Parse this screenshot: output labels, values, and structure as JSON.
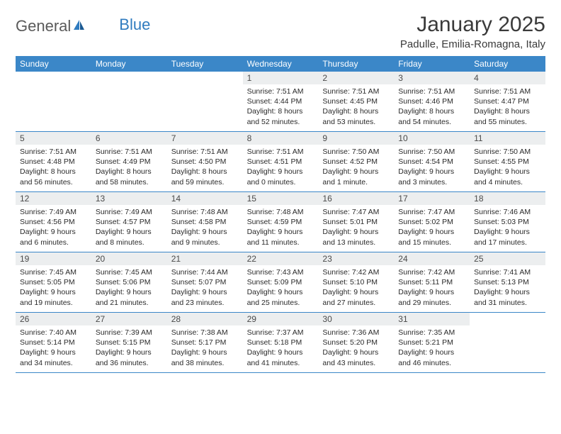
{
  "brand": {
    "name_part1": "General",
    "name_part2": "Blue",
    "text_color": "#5a5a5a",
    "accent_color": "#2f7bbf"
  },
  "title": "January 2025",
  "location": "Padulle, Emilia-Romagna, Italy",
  "colors": {
    "header_bg": "#3b87c8",
    "header_text": "#ffffff",
    "daynum_bg": "#eceeef",
    "daynum_text": "#4a4a4a",
    "body_text": "#2a2a2a",
    "divider": "#3b87c8",
    "page_bg": "#ffffff"
  },
  "typography": {
    "title_fontsize": 30,
    "location_fontsize": 15,
    "weekday_fontsize": 12,
    "daynum_fontsize": 12,
    "body_fontsize": 10.5
  },
  "weekdays": [
    "Sunday",
    "Monday",
    "Tuesday",
    "Wednesday",
    "Thursday",
    "Friday",
    "Saturday"
  ],
  "weeks": [
    [
      null,
      null,
      null,
      {
        "num": "1",
        "sunrise": "Sunrise: 7:51 AM",
        "sunset": "Sunset: 4:44 PM",
        "daylight1": "Daylight: 8 hours",
        "daylight2": "and 52 minutes."
      },
      {
        "num": "2",
        "sunrise": "Sunrise: 7:51 AM",
        "sunset": "Sunset: 4:45 PM",
        "daylight1": "Daylight: 8 hours",
        "daylight2": "and 53 minutes."
      },
      {
        "num": "3",
        "sunrise": "Sunrise: 7:51 AM",
        "sunset": "Sunset: 4:46 PM",
        "daylight1": "Daylight: 8 hours",
        "daylight2": "and 54 minutes."
      },
      {
        "num": "4",
        "sunrise": "Sunrise: 7:51 AM",
        "sunset": "Sunset: 4:47 PM",
        "daylight1": "Daylight: 8 hours",
        "daylight2": "and 55 minutes."
      }
    ],
    [
      {
        "num": "5",
        "sunrise": "Sunrise: 7:51 AM",
        "sunset": "Sunset: 4:48 PM",
        "daylight1": "Daylight: 8 hours",
        "daylight2": "and 56 minutes."
      },
      {
        "num": "6",
        "sunrise": "Sunrise: 7:51 AM",
        "sunset": "Sunset: 4:49 PM",
        "daylight1": "Daylight: 8 hours",
        "daylight2": "and 58 minutes."
      },
      {
        "num": "7",
        "sunrise": "Sunrise: 7:51 AM",
        "sunset": "Sunset: 4:50 PM",
        "daylight1": "Daylight: 8 hours",
        "daylight2": "and 59 minutes."
      },
      {
        "num": "8",
        "sunrise": "Sunrise: 7:51 AM",
        "sunset": "Sunset: 4:51 PM",
        "daylight1": "Daylight: 9 hours",
        "daylight2": "and 0 minutes."
      },
      {
        "num": "9",
        "sunrise": "Sunrise: 7:50 AM",
        "sunset": "Sunset: 4:52 PM",
        "daylight1": "Daylight: 9 hours",
        "daylight2": "and 1 minute."
      },
      {
        "num": "10",
        "sunrise": "Sunrise: 7:50 AM",
        "sunset": "Sunset: 4:54 PM",
        "daylight1": "Daylight: 9 hours",
        "daylight2": "and 3 minutes."
      },
      {
        "num": "11",
        "sunrise": "Sunrise: 7:50 AM",
        "sunset": "Sunset: 4:55 PM",
        "daylight1": "Daylight: 9 hours",
        "daylight2": "and 4 minutes."
      }
    ],
    [
      {
        "num": "12",
        "sunrise": "Sunrise: 7:49 AM",
        "sunset": "Sunset: 4:56 PM",
        "daylight1": "Daylight: 9 hours",
        "daylight2": "and 6 minutes."
      },
      {
        "num": "13",
        "sunrise": "Sunrise: 7:49 AM",
        "sunset": "Sunset: 4:57 PM",
        "daylight1": "Daylight: 9 hours",
        "daylight2": "and 8 minutes."
      },
      {
        "num": "14",
        "sunrise": "Sunrise: 7:48 AM",
        "sunset": "Sunset: 4:58 PM",
        "daylight1": "Daylight: 9 hours",
        "daylight2": "and 9 minutes."
      },
      {
        "num": "15",
        "sunrise": "Sunrise: 7:48 AM",
        "sunset": "Sunset: 4:59 PM",
        "daylight1": "Daylight: 9 hours",
        "daylight2": "and 11 minutes."
      },
      {
        "num": "16",
        "sunrise": "Sunrise: 7:47 AM",
        "sunset": "Sunset: 5:01 PM",
        "daylight1": "Daylight: 9 hours",
        "daylight2": "and 13 minutes."
      },
      {
        "num": "17",
        "sunrise": "Sunrise: 7:47 AM",
        "sunset": "Sunset: 5:02 PM",
        "daylight1": "Daylight: 9 hours",
        "daylight2": "and 15 minutes."
      },
      {
        "num": "18",
        "sunrise": "Sunrise: 7:46 AM",
        "sunset": "Sunset: 5:03 PM",
        "daylight1": "Daylight: 9 hours",
        "daylight2": "and 17 minutes."
      }
    ],
    [
      {
        "num": "19",
        "sunrise": "Sunrise: 7:45 AM",
        "sunset": "Sunset: 5:05 PM",
        "daylight1": "Daylight: 9 hours",
        "daylight2": "and 19 minutes."
      },
      {
        "num": "20",
        "sunrise": "Sunrise: 7:45 AM",
        "sunset": "Sunset: 5:06 PM",
        "daylight1": "Daylight: 9 hours",
        "daylight2": "and 21 minutes."
      },
      {
        "num": "21",
        "sunrise": "Sunrise: 7:44 AM",
        "sunset": "Sunset: 5:07 PM",
        "daylight1": "Daylight: 9 hours",
        "daylight2": "and 23 minutes."
      },
      {
        "num": "22",
        "sunrise": "Sunrise: 7:43 AM",
        "sunset": "Sunset: 5:09 PM",
        "daylight1": "Daylight: 9 hours",
        "daylight2": "and 25 minutes."
      },
      {
        "num": "23",
        "sunrise": "Sunrise: 7:42 AM",
        "sunset": "Sunset: 5:10 PM",
        "daylight1": "Daylight: 9 hours",
        "daylight2": "and 27 minutes."
      },
      {
        "num": "24",
        "sunrise": "Sunrise: 7:42 AM",
        "sunset": "Sunset: 5:11 PM",
        "daylight1": "Daylight: 9 hours",
        "daylight2": "and 29 minutes."
      },
      {
        "num": "25",
        "sunrise": "Sunrise: 7:41 AM",
        "sunset": "Sunset: 5:13 PM",
        "daylight1": "Daylight: 9 hours",
        "daylight2": "and 31 minutes."
      }
    ],
    [
      {
        "num": "26",
        "sunrise": "Sunrise: 7:40 AM",
        "sunset": "Sunset: 5:14 PM",
        "daylight1": "Daylight: 9 hours",
        "daylight2": "and 34 minutes."
      },
      {
        "num": "27",
        "sunrise": "Sunrise: 7:39 AM",
        "sunset": "Sunset: 5:15 PM",
        "daylight1": "Daylight: 9 hours",
        "daylight2": "and 36 minutes."
      },
      {
        "num": "28",
        "sunrise": "Sunrise: 7:38 AM",
        "sunset": "Sunset: 5:17 PM",
        "daylight1": "Daylight: 9 hours",
        "daylight2": "and 38 minutes."
      },
      {
        "num": "29",
        "sunrise": "Sunrise: 7:37 AM",
        "sunset": "Sunset: 5:18 PM",
        "daylight1": "Daylight: 9 hours",
        "daylight2": "and 41 minutes."
      },
      {
        "num": "30",
        "sunrise": "Sunrise: 7:36 AM",
        "sunset": "Sunset: 5:20 PM",
        "daylight1": "Daylight: 9 hours",
        "daylight2": "and 43 minutes."
      },
      {
        "num": "31",
        "sunrise": "Sunrise: 7:35 AM",
        "sunset": "Sunset: 5:21 PM",
        "daylight1": "Daylight: 9 hours",
        "daylight2": "and 46 minutes."
      },
      null
    ]
  ]
}
